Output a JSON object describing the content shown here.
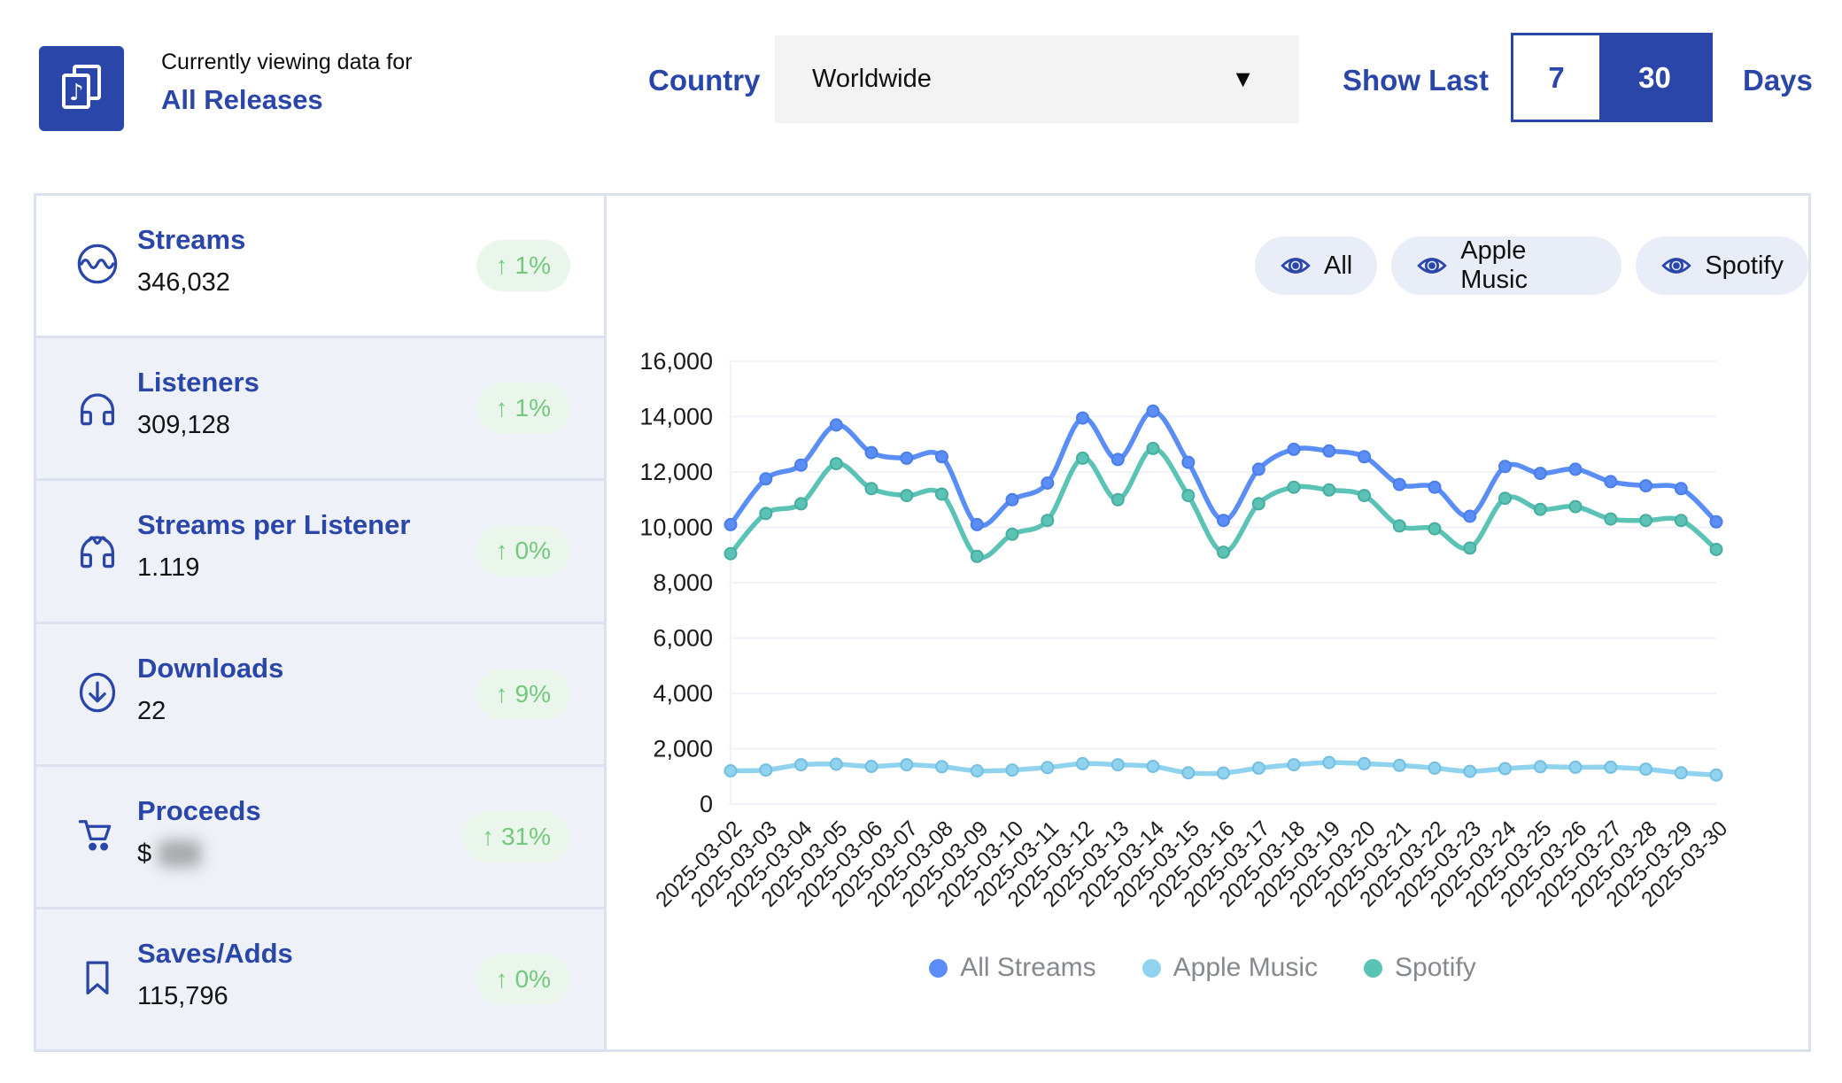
{
  "header": {
    "viewing_label": "Currently viewing data for",
    "viewing_target": "All Releases",
    "country_label": "Country",
    "country_value": "Worldwide",
    "show_last_label": "Show Last",
    "day_options": [
      "7",
      "30"
    ],
    "selected_days": "30",
    "days_label": "Days"
  },
  "icons": {
    "caret_down": "▼",
    "arrow_up": "↑",
    "logo_note": "♪"
  },
  "stats": [
    {
      "icon": "wave-circle-icon",
      "label": "Streams",
      "value": "346,032",
      "change": "1%",
      "direction": "up",
      "active": true
    },
    {
      "icon": "headphones-icon",
      "label": "Listeners",
      "value": "309,128",
      "change": "1%",
      "direction": "up",
      "active": false
    },
    {
      "icon": "headphones-wave-icon",
      "label": "Streams per Listener",
      "value": "1.119",
      "change": "0%",
      "direction": "up",
      "active": false
    },
    {
      "icon": "download-circle-icon",
      "label": "Downloads",
      "value": "22",
      "change": "9%",
      "direction": "up",
      "active": false
    },
    {
      "icon": "cart-icon",
      "label": "Proceeds",
      "value": "$",
      "value_masked": true,
      "change": "31%",
      "direction": "up",
      "active": false
    },
    {
      "icon": "bookmark-icon",
      "label": "Saves/Adds",
      "value": "115,796",
      "change": "0%",
      "direction": "up",
      "active": false
    }
  ],
  "filters": [
    {
      "label": "All"
    },
    {
      "label": "Apple Music"
    },
    {
      "label": "Spotify"
    }
  ],
  "chart_data": {
    "type": "line",
    "x": [
      "2025-03-02",
      "2025-03-03",
      "2025-03-04",
      "2025-03-05",
      "2025-03-06",
      "2025-03-07",
      "2025-03-08",
      "2025-03-09",
      "2025-03-10",
      "2025-03-11",
      "2025-03-12",
      "2025-03-13",
      "2025-03-14",
      "2025-03-15",
      "2025-03-16",
      "2025-03-17",
      "2025-03-18",
      "2025-03-19",
      "2025-03-20",
      "2025-03-21",
      "2025-03-22",
      "2025-03-23",
      "2025-03-24",
      "2025-03-25",
      "2025-03-26",
      "2025-03-27",
      "2025-03-28",
      "2025-03-29",
      "2025-03-30"
    ],
    "series": [
      {
        "name": "All Streams",
        "color": "#5a8df6",
        "marker_stroke": "#4a7de8",
        "values": [
          10100,
          11750,
          12250,
          13700,
          12700,
          12500,
          12550,
          10100,
          11000,
          11600,
          13950,
          12450,
          14200,
          12350,
          10250,
          12100,
          12820,
          12760,
          12550,
          11550,
          11450,
          10400,
          12200,
          11950,
          12100,
          11650,
          11500,
          11400,
          10200
        ]
      },
      {
        "name": "Apple Music",
        "color": "#8fd3ef",
        "marker_stroke": "#74bfe0",
        "values": [
          1200,
          1230,
          1420,
          1440,
          1360,
          1420,
          1350,
          1200,
          1230,
          1320,
          1460,
          1420,
          1360,
          1130,
          1120,
          1300,
          1420,
          1500,
          1460,
          1400,
          1300,
          1180,
          1280,
          1350,
          1330,
          1330,
          1260,
          1130,
          1050
        ]
      },
      {
        "name": "Spotify",
        "color": "#5bc2b6",
        "marker_stroke": "#48ad9f",
        "values": [
          9050,
          10500,
          10850,
          12300,
          11400,
          11150,
          11200,
          8950,
          9750,
          10250,
          12500,
          11000,
          12850,
          11150,
          9100,
          10850,
          11450,
          11350,
          11150,
          10050,
          9950,
          9250,
          11050,
          10650,
          10750,
          10300,
          10250,
          10250,
          9200
        ]
      }
    ],
    "ylim": [
      0,
      16000
    ],
    "yticks": [
      0,
      2000,
      4000,
      6000,
      8000,
      10000,
      12000,
      14000,
      16000
    ],
    "grid": true,
    "legend_position": "bottom",
    "title": "",
    "xlabel": "",
    "ylabel": ""
  },
  "colors": {
    "brand_blue": "#2a46a8",
    "green": "#72c97c",
    "green_bg": "#eaf6eb",
    "card_bg": "#eef1f8",
    "panel_border": "#dbe1ef",
    "pill_bg": "#e9edf7",
    "gridline": "#f1f1f8",
    "axis_text": "#1a1a1a",
    "legend_text": "#85898e"
  }
}
